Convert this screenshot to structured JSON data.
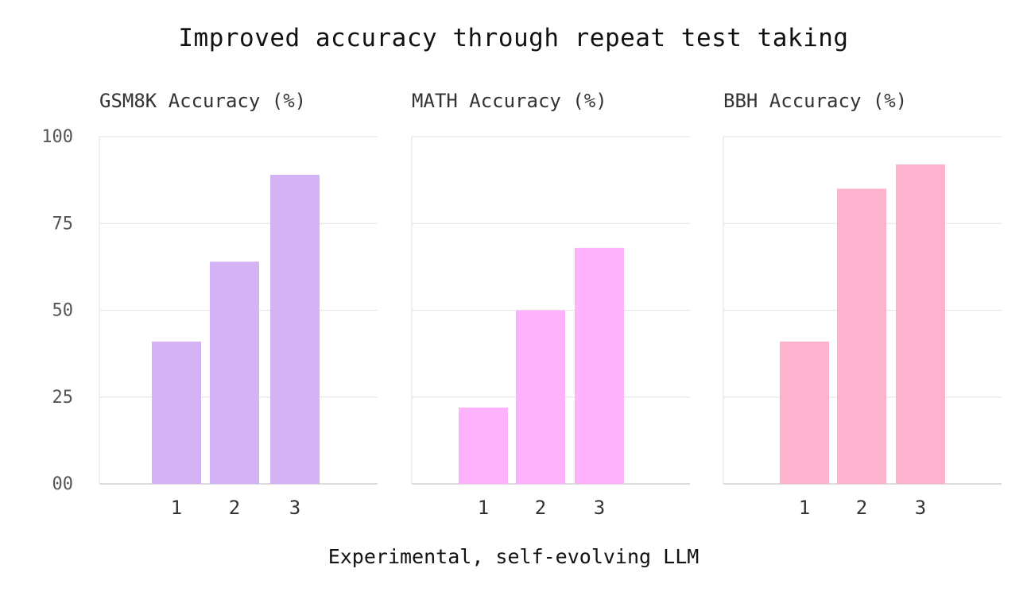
{
  "title": "Improved accuracy through repeat test taking",
  "x_caption": "Experimental, self-evolving LLM",
  "chart_data": [
    {
      "type": "bar",
      "title": "GSM8K Accuracy (%)",
      "categories": [
        "1",
        "2",
        "3"
      ],
      "values": [
        41,
        64,
        89
      ],
      "ylim": [
        0,
        100
      ],
      "yticks": [
        0,
        25,
        50,
        75,
        100
      ],
      "ytick_labels": [
        "00",
        "25",
        "50",
        "75",
        "100"
      ],
      "grid": true,
      "color": "#d4b3f5"
    },
    {
      "type": "bar",
      "title": "MATH Accuracy (%)",
      "categories": [
        "1",
        "2",
        "3"
      ],
      "values": [
        22,
        50,
        68
      ],
      "ylim": [
        0,
        100
      ],
      "yticks": [
        0,
        25,
        50,
        75,
        100
      ],
      "grid": true,
      "color": "#fcb3fb"
    },
    {
      "type": "bar",
      "title": "BBH Accuracy (%)",
      "categories": [
        "1",
        "2",
        "3"
      ],
      "values": [
        41,
        85,
        92
      ],
      "ylim": [
        0,
        100
      ],
      "yticks": [
        0,
        25,
        50,
        75,
        100
      ],
      "grid": true,
      "color": "#fdb3cd"
    }
  ]
}
